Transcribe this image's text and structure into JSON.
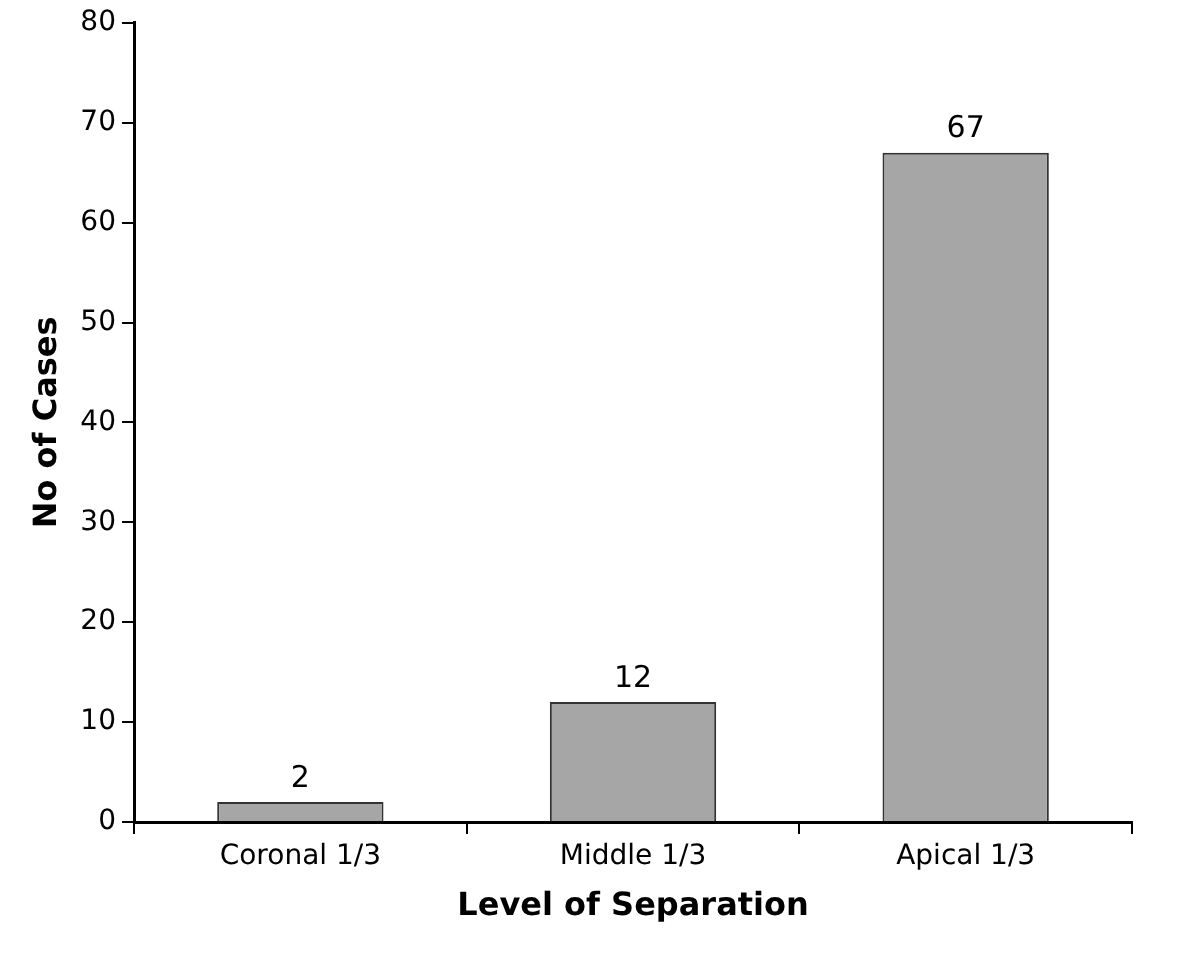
{
  "chart_data": {
    "type": "bar",
    "xlabel": "Level of Separation",
    "ylabel": "No of Cases",
    "categories": [
      "Coronal 1/3",
      "Middle 1/3",
      "Apical 1/3"
    ],
    "values": [
      2,
      12,
      67
    ],
    "color": "#a6a6a6",
    "ylim": [
      0,
      80
    ],
    "yticks": [
      0,
      10,
      20,
      30,
      40,
      50,
      60,
      70,
      80
    ],
    "grid": false,
    "legend": false,
    "data_labels": true
  }
}
